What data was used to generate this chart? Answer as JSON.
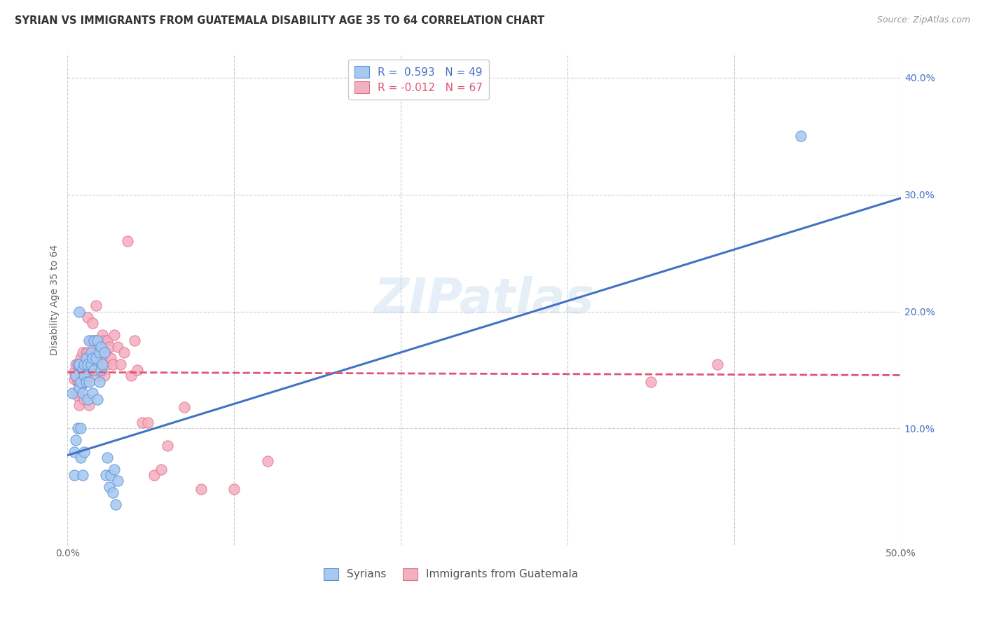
{
  "title": "SYRIAN VS IMMIGRANTS FROM GUATEMALA DISABILITY AGE 35 TO 64 CORRELATION CHART",
  "source": "Source: ZipAtlas.com",
  "ylabel": "Disability Age 35 to 64",
  "xlim": [
    0.0,
    0.5
  ],
  "ylim": [
    0.0,
    0.42
  ],
  "xticks": [
    0.0,
    0.1,
    0.2,
    0.3,
    0.4,
    0.5
  ],
  "xticklabels": [
    "0.0%",
    "",
    "",
    "",
    "",
    "50.0%"
  ],
  "ytick_right": [
    0.1,
    0.2,
    0.3,
    0.4
  ],
  "ytick_right_labels": [
    "10.0%",
    "20.0%",
    "30.0%",
    "40.0%"
  ],
  "legend_r_blue": "0.593",
  "legend_n_blue": "49",
  "legend_r_pink": "-0.012",
  "legend_n_pink": "67",
  "blue_dot_color": "#A8C8F0",
  "pink_dot_color": "#F5B0C0",
  "blue_edge_color": "#5590D8",
  "pink_edge_color": "#E07090",
  "blue_line_color": "#4472C4",
  "pink_line_color": "#E05575",
  "bg_color": "#FFFFFF",
  "grid_color": "#CCCCCC",
  "watermark": "ZIPatlas",
  "syrians_x": [
    0.003,
    0.004,
    0.004,
    0.005,
    0.005,
    0.006,
    0.006,
    0.007,
    0.007,
    0.007,
    0.008,
    0.008,
    0.008,
    0.009,
    0.009,
    0.009,
    0.01,
    0.01,
    0.01,
    0.011,
    0.011,
    0.012,
    0.012,
    0.013,
    0.013,
    0.014,
    0.014,
    0.015,
    0.015,
    0.016,
    0.016,
    0.017,
    0.018,
    0.018,
    0.019,
    0.019,
    0.02,
    0.02,
    0.021,
    0.022,
    0.023,
    0.024,
    0.025,
    0.026,
    0.027,
    0.028,
    0.029,
    0.03,
    0.44
  ],
  "syrians_y": [
    0.13,
    0.08,
    0.06,
    0.145,
    0.09,
    0.155,
    0.1,
    0.2,
    0.155,
    0.135,
    0.14,
    0.1,
    0.075,
    0.15,
    0.13,
    0.06,
    0.155,
    0.145,
    0.08,
    0.16,
    0.14,
    0.155,
    0.125,
    0.175,
    0.14,
    0.165,
    0.155,
    0.16,
    0.13,
    0.175,
    0.15,
    0.16,
    0.175,
    0.125,
    0.165,
    0.14,
    0.17,
    0.15,
    0.155,
    0.165,
    0.06,
    0.075,
    0.05,
    0.06,
    0.045,
    0.065,
    0.035,
    0.055,
    0.35
  ],
  "guatemala_x": [
    0.004,
    0.004,
    0.005,
    0.005,
    0.005,
    0.006,
    0.006,
    0.007,
    0.007,
    0.007,
    0.008,
    0.008,
    0.008,
    0.009,
    0.009,
    0.01,
    0.01,
    0.01,
    0.011,
    0.011,
    0.012,
    0.012,
    0.012,
    0.013,
    0.013,
    0.014,
    0.014,
    0.015,
    0.015,
    0.016,
    0.016,
    0.017,
    0.017,
    0.018,
    0.018,
    0.019,
    0.02,
    0.02,
    0.021,
    0.021,
    0.022,
    0.022,
    0.023,
    0.024,
    0.024,
    0.025,
    0.026,
    0.027,
    0.028,
    0.03,
    0.032,
    0.034,
    0.036,
    0.038,
    0.04,
    0.042,
    0.045,
    0.048,
    0.052,
    0.056,
    0.06,
    0.07,
    0.08,
    0.1,
    0.12,
    0.35,
    0.39
  ],
  "guatemala_y": [
    0.142,
    0.148,
    0.13,
    0.145,
    0.155,
    0.14,
    0.128,
    0.155,
    0.14,
    0.12,
    0.135,
    0.148,
    0.16,
    0.15,
    0.165,
    0.145,
    0.155,
    0.125,
    0.145,
    0.165,
    0.155,
    0.195,
    0.165,
    0.155,
    0.12,
    0.175,
    0.15,
    0.165,
    0.19,
    0.175,
    0.155,
    0.205,
    0.175,
    0.165,
    0.145,
    0.155,
    0.175,
    0.148,
    0.18,
    0.16,
    0.175,
    0.145,
    0.165,
    0.155,
    0.175,
    0.17,
    0.16,
    0.155,
    0.18,
    0.17,
    0.155,
    0.165,
    0.26,
    0.145,
    0.175,
    0.15,
    0.105,
    0.105,
    0.06,
    0.065,
    0.085,
    0.118,
    0.048,
    0.048,
    0.072,
    0.14,
    0.155
  ]
}
